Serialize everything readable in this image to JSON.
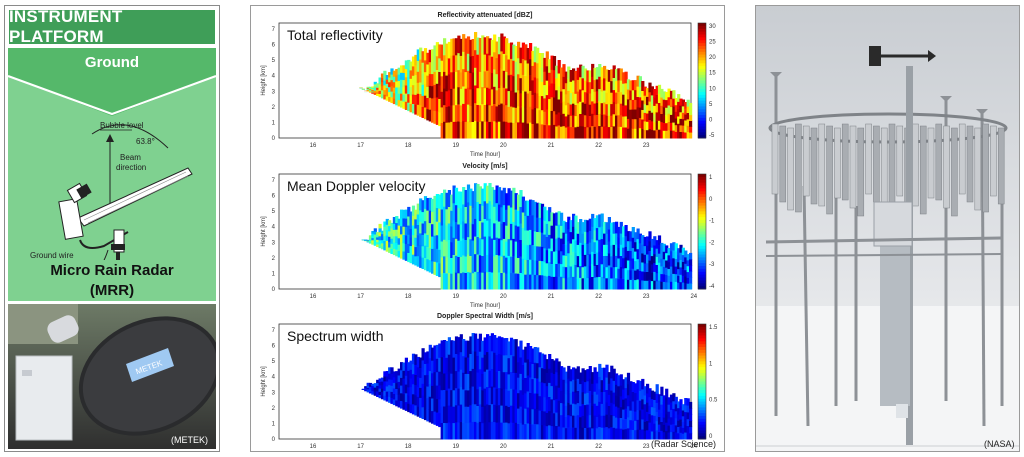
{
  "left": {
    "header": "INSTRUMENT PLATFORM",
    "subheader": "Ground",
    "diagram": {
      "bubble_level": "Bubble level",
      "angle": "63.8°",
      "beam_direction_line1": "Beam",
      "beam_direction_line2": "direction",
      "ground_wire": "Ground wire"
    },
    "title_line1": "Micro Rain Radar",
    "title_line2": "(MRR)",
    "photo_credit": "(METEK)",
    "photo_logo": "METEK"
  },
  "middle": {
    "credit": "(Radar Science)",
    "plots": [
      {
        "header": "Reflectivity attenuated [dBZ]",
        "label": "Total reflectivity",
        "cbar_ticks": [
          "30",
          "25",
          "20",
          "15",
          "10",
          "5",
          "0",
          "-5"
        ],
        "colormap": "jet"
      },
      {
        "header": "Velocity [m/s]",
        "label": "Mean Doppler velocity",
        "cbar_ticks": [
          "1",
          "0",
          "-1",
          "-2",
          "-3",
          "-4"
        ],
        "colormap": "jet"
      },
      {
        "header": "Doppler Spectral Width [m/s]",
        "label": "Spectrum width",
        "cbar_ticks": [
          "1.5",
          "1",
          "0.5",
          "0"
        ],
        "colormap": "jet"
      }
    ],
    "ylabel": "Height [km]",
    "xlabel": "Time [hour]",
    "yticks": [
      "7",
      "6",
      "5",
      "4",
      "3",
      "2",
      "1",
      "0"
    ],
    "xticks_top": [
      "16",
      "17",
      "18",
      "19",
      "20",
      "21",
      "22",
      "23"
    ],
    "xticks": [
      "16",
      "17",
      "18",
      "19",
      "20",
      "21",
      "22",
      "23",
      "24"
    ]
  },
  "right": {
    "credit": "(NASA)"
  }
}
